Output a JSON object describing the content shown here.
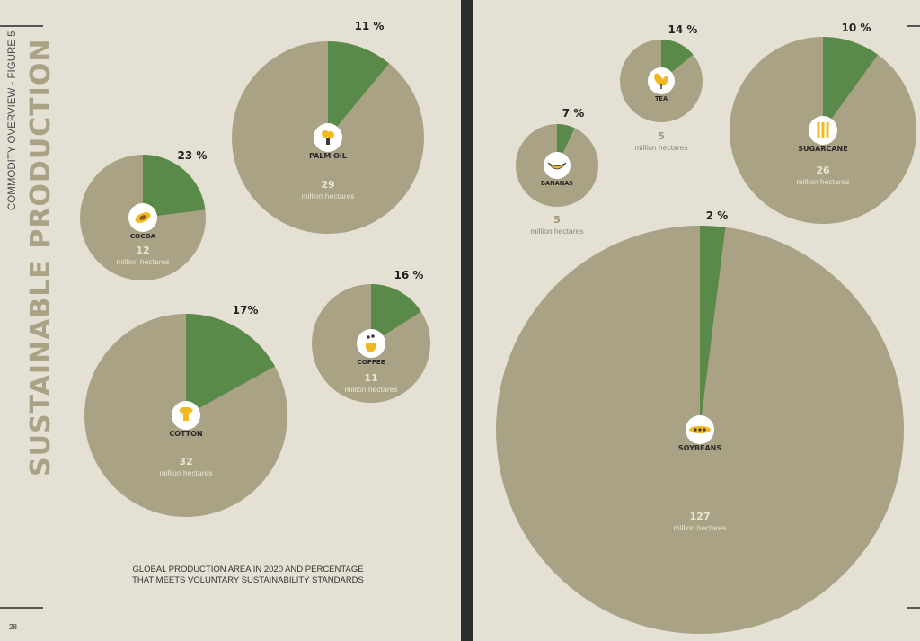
{
  "header": {
    "title": "SUSTAINABLE PRODUCTION",
    "subtitle": "COMMODITY OVERVIEW - FIGURE 5"
  },
  "caption": {
    "line1": "GLOBAL PRODUCTION AREA IN 2020 AND PERCENTAGE",
    "line2": "THAT MEETS VOLUNTARY SUSTAINABILITY STANDARDS"
  },
  "page_number": "28",
  "colors": {
    "background": "#e4e0d4",
    "pie_total": "#a9a285",
    "pie_certified": "#5a8a4a",
    "icon_yellow": "#f2b81f",
    "spine": "#2d2d30"
  },
  "chart_data": {
    "type": "pie",
    "unit_label": "million hectares",
    "items": [
      {
        "name": "PALM OIL",
        "area": 29,
        "area_label": "29",
        "certified_pct": 11,
        "pct_label": "11 %",
        "icon": "palm-oil-icon"
      },
      {
        "name": "COCOA",
        "area": 12,
        "area_label": "12",
        "certified_pct": 23,
        "pct_label": "23 %",
        "icon": "cocoa-icon"
      },
      {
        "name": "COFFEE",
        "area": 11,
        "area_label": "11",
        "certified_pct": 16,
        "pct_label": "16 %",
        "icon": "coffee-icon"
      },
      {
        "name": "COTTON",
        "area": 32,
        "area_label": "32",
        "certified_pct": 17,
        "pct_label": "17%",
        "icon": "cotton-icon"
      },
      {
        "name": "TEA",
        "area": 5,
        "area_label": "5",
        "certified_pct": 14,
        "pct_label": "14 %",
        "icon": "tea-icon"
      },
      {
        "name": "BANANAS",
        "area": 5,
        "area_label": "5",
        "certified_pct": 7,
        "pct_label": "7 %",
        "icon": "bananas-icon"
      },
      {
        "name": "SUGARCANE",
        "area": 26,
        "area_label": "26",
        "certified_pct": 10,
        "pct_label": "10 %",
        "icon": "sugarcane-icon"
      },
      {
        "name": "SOYBEANS",
        "area": 127,
        "area_label": "127",
        "certified_pct": 2,
        "pct_label": "2 %",
        "icon": "soybeans-icon"
      }
    ]
  }
}
